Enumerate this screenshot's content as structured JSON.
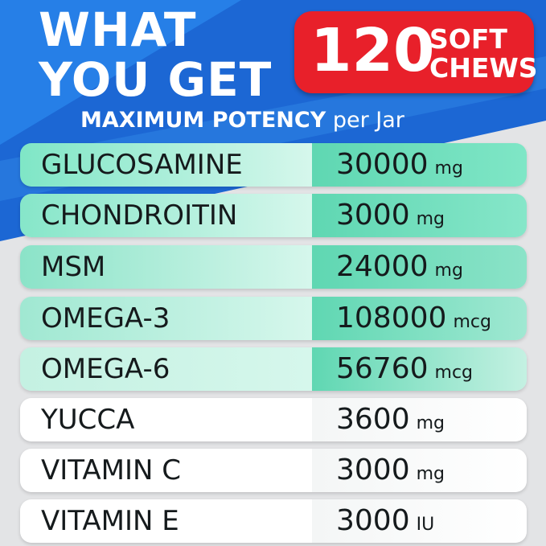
{
  "header": {
    "title_lines": [
      "WHAT",
      "YOU GET"
    ],
    "badge": {
      "number": "120",
      "text_lines": [
        "SOFT",
        "CHEWS"
      ]
    },
    "subtitle": {
      "main": "MAXIMUM POTENCY",
      "rest": "per Jar"
    }
  },
  "table": {
    "rows": [
      {
        "name": "GLUCOSAMINE",
        "amount": "30000",
        "unit": "mg"
      },
      {
        "name": "CHONDROITIN",
        "amount": "3000",
        "unit": "mg"
      },
      {
        "name": "MSM",
        "amount": "24000",
        "unit": "mg"
      },
      {
        "name": "OMEGA-3",
        "amount": "108000",
        "unit": "mcg"
      },
      {
        "name": "OMEGA-6",
        "amount": "56760",
        "unit": "mcg"
      },
      {
        "name": "YUCCA",
        "amount": "3600",
        "unit": "mg"
      },
      {
        "name": "VITAMIN C",
        "amount": "3000",
        "unit": "mg"
      },
      {
        "name": "VITAMIN E",
        "amount": "3000",
        "unit": "IU"
      }
    ]
  }
}
